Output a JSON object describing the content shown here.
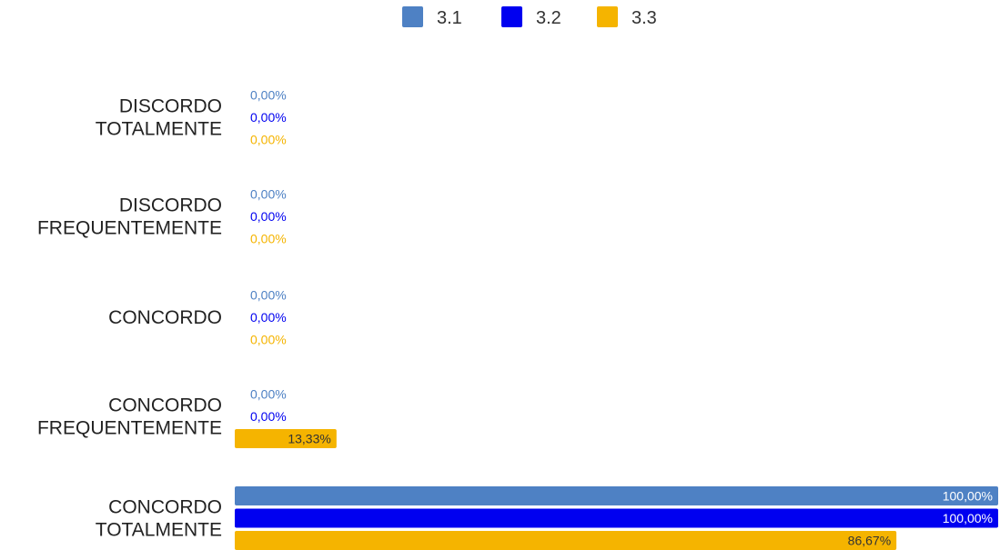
{
  "chart_data": {
    "type": "bar",
    "orientation": "horizontal",
    "title": "",
    "xlabel": "",
    "ylabel": "",
    "xlim": [
      0,
      100
    ],
    "grid": false,
    "legend_position": "top-center",
    "categories": [
      [
        "DISCORDO",
        "TOTALMENTE"
      ],
      [
        "DISCORDO",
        "FREQUENTEMENTE"
      ],
      [
        "CONCORDO"
      ],
      [
        "CONCORDO",
        "FREQUENTEMENTE"
      ],
      [
        "CONCORDO",
        "TOTALMENTE"
      ]
    ],
    "series": [
      {
        "name": "3.1",
        "color": "#4E81C4",
        "values": [
          0,
          0,
          0,
          0,
          100
        ],
        "labels": [
          "0,00%",
          "0,00%",
          "0,00%",
          "0,00%",
          "100,00%"
        ]
      },
      {
        "name": "3.2",
        "color": "#0000F0",
        "values": [
          0,
          0,
          0,
          0,
          100
        ],
        "labels": [
          "0,00%",
          "0,00%",
          "0,00%",
          "0,00%",
          "100,00%"
        ]
      },
      {
        "name": "3.3",
        "color": "#F5B400",
        "values": [
          0,
          0,
          0,
          13.33,
          86.67
        ],
        "labels": [
          "0,00%",
          "0,00%",
          "0,00%",
          "13,33%",
          "86,67%"
        ]
      }
    ]
  }
}
